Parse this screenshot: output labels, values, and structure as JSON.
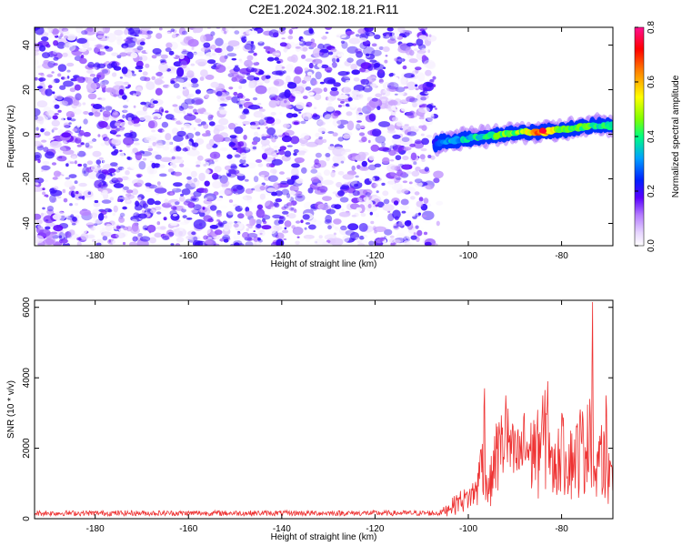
{
  "title": "C2E1.2024.302.18.21.R11",
  "colors": {
    "snr_line": "#ee3333",
    "scatter_noise": "#8a2be2",
    "background": "#ffffff"
  },
  "chart_data": [
    {
      "type": "heatmap",
      "title": "C2E1.2024.302.18.21.R11",
      "xlabel": "Height of straight line (km)",
      "ylabel": "Frequency (Hz)",
      "xlim": [
        -193,
        -69
      ],
      "ylim": [
        -50,
        48
      ],
      "x_ticks": [
        -180,
        -160,
        -140,
        -120,
        -100,
        -80
      ],
      "y_ticks": [
        -40,
        -20,
        0,
        20,
        40
      ],
      "colorbar": {
        "label": "Normalized spectral amplitude",
        "range": [
          0.0,
          0.8
        ],
        "ticks": [
          0.0,
          0.2,
          0.4,
          0.6,
          0.8
        ],
        "ticks_text": [
          "0.0",
          "0.2",
          "0.4",
          "0.6",
          "0.8"
        ]
      },
      "noise_region_x": [
        -193,
        -107
      ],
      "noise_amplitude_range": [
        0.0,
        0.1
      ],
      "signal_trace": {
        "x": [
          -107,
          -104,
          -100,
          -96,
          -92,
          -88,
          -84,
          -80,
          -76,
          -72,
          -69
        ],
        "frequency": [
          -4,
          -3,
          -2,
          -1,
          0,
          1,
          1,
          2,
          3,
          4,
          4
        ],
        "peak_amplitude": [
          0.25,
          0.35,
          0.4,
          0.45,
          0.5,
          0.55,
          0.75,
          0.55,
          0.5,
          0.45,
          0.45
        ]
      }
    },
    {
      "type": "line",
      "xlabel": "Height of straight line (km)",
      "ylabel": "SNR (10 * v/v)",
      "xlim": [
        -193,
        -69
      ],
      "ylim": [
        0,
        6200
      ],
      "x_ticks": [
        -180,
        -160,
        -140,
        -120,
        -100,
        -80
      ],
      "y_ticks": [
        0,
        2000,
        4000,
        6000
      ],
      "series": [
        {
          "x": [
            -193,
            -180,
            -160,
            -140,
            -120,
            -110,
            -106,
            -104,
            -102,
            -100,
            -98,
            -96.5,
            -96,
            -94,
            -92,
            -90,
            -88,
            -86,
            -84,
            -83,
            -82,
            -80,
            -78,
            -76,
            -74,
            -73.4,
            -73,
            -72,
            -70.5,
            -69.5
          ],
          "values": [
            180,
            180,
            180,
            180,
            180,
            200,
            250,
            500,
            800,
            900,
            1300,
            3700,
            1000,
            2700,
            3500,
            2500,
            3000,
            2800,
            3500,
            3900,
            2000,
            3000,
            2500,
            3100,
            3400,
            6150,
            1500,
            2200,
            3500,
            1600
          ]
        }
      ],
      "noise_floor": 180
    }
  ]
}
